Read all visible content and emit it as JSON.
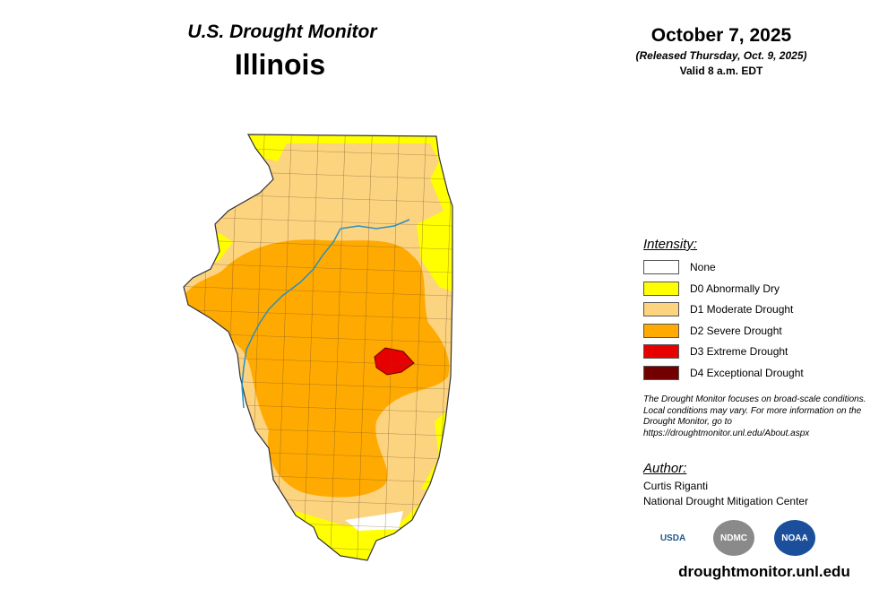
{
  "header": {
    "title": "U.S. Drought Monitor",
    "state": "Illinois"
  },
  "date": {
    "date": "October 7, 2025",
    "released": "(Released Thursday, Oct. 9, 2025)",
    "valid": "Valid 8 a.m. EDT"
  },
  "legend": {
    "title": "Intensity:",
    "items": [
      {
        "label": "None",
        "color": "#ffffff"
      },
      {
        "label": "D0 Abnormally Dry",
        "color": "#ffff00"
      },
      {
        "label": "D1 Moderate Drought",
        "color": "#fcd37f"
      },
      {
        "label": "D2 Severe Drought",
        "color": "#ffaa00"
      },
      {
        "label": "D3 Extreme Drought",
        "color": "#e60000"
      },
      {
        "label": "D4 Exceptional Drought",
        "color": "#730000"
      }
    ]
  },
  "note": "The Drought Monitor focuses on broad-scale conditions. Local conditions may vary. For more information on the Drought Monitor, go to https://droughtmonitor.unl.edu/About.aspx",
  "author": {
    "title": "Author:",
    "name": "Curtis Riganti",
    "org": "National Drought Mitigation Center"
  },
  "logos": [
    "USDA",
    "NDMC",
    "NOAA"
  ],
  "url": "droughtmonitor.unl.edu"
}
